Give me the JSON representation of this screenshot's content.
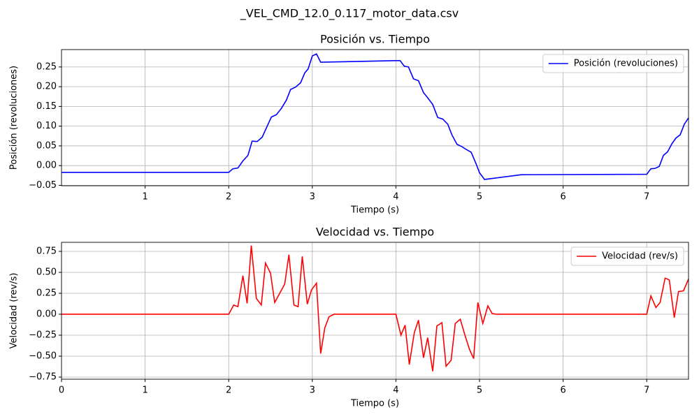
{
  "title": "_VEL_CMD_12.0_0.117_motor_data.csv",
  "chart_data": [
    {
      "type": "line",
      "title": "Posición vs. Tiempo",
      "xlabel": "Tiempo (s)",
      "ylabel": "Posición (revoluciones)",
      "x": [
        0,
        2.0,
        2.05,
        2.11,
        2.17,
        2.23,
        2.28,
        2.34,
        2.4,
        2.46,
        2.51,
        2.57,
        2.63,
        2.69,
        2.74,
        2.8,
        2.86,
        2.91,
        2.95,
        3.0,
        3.05,
        3.1,
        4.0,
        4.05,
        4.1,
        4.15,
        4.21,
        4.27,
        4.33,
        4.38,
        4.44,
        4.5,
        4.56,
        4.62,
        4.67,
        4.73,
        4.79,
        4.84,
        4.9,
        4.96,
        5.0,
        5.06,
        5.5,
        7.0,
        7.05,
        7.1,
        7.15,
        7.2,
        7.25,
        7.3,
        7.35,
        7.4,
        7.45,
        7.5
      ],
      "series": [
        {
          "name": "Posición (revoluciones)",
          "color": "#0000ff",
          "values": [
            -0.017,
            -0.017,
            -0.008,
            -0.006,
            0.012,
            0.026,
            0.062,
            0.061,
            0.072,
            0.1,
            0.123,
            0.129,
            0.145,
            0.166,
            0.193,
            0.199,
            0.21,
            0.235,
            0.245,
            0.278,
            0.283,
            0.262,
            0.266,
            0.266,
            0.252,
            0.25,
            0.22,
            0.215,
            0.185,
            0.172,
            0.155,
            0.122,
            0.118,
            0.105,
            0.078,
            0.054,
            0.048,
            0.041,
            0.034,
            0.004,
            -0.018,
            -0.035,
            -0.023,
            -0.022,
            -0.008,
            -0.007,
            -0.002,
            0.026,
            0.035,
            0.055,
            0.07,
            0.078,
            0.105,
            0.121
          ]
        }
      ],
      "xlim": [
        0,
        7.5
      ],
      "xticks": [
        1,
        2,
        3,
        4,
        5,
        6,
        7
      ],
      "ylim": [
        -0.051,
        0.294
      ],
      "yticks": [
        {
          "value": -0.05,
          "label": "−0.05"
        },
        {
          "value": 0,
          "label": "0.00"
        },
        0.05,
        {
          "value": 0.1,
          "label": "0.10"
        },
        0.15,
        {
          "value": 0.2,
          "label": "0.20"
        },
        0.25
      ],
      "grid": true,
      "legend": "upper right"
    },
    {
      "type": "line",
      "title": "Velocidad vs. Tiempo",
      "xlabel": "Tiempo (s)",
      "ylabel": "Velocidad (rev/s)",
      "x": [
        0,
        2.0,
        2.06,
        2.11,
        2.17,
        2.22,
        2.27,
        2.33,
        2.39,
        2.44,
        2.5,
        2.55,
        2.61,
        2.67,
        2.72,
        2.78,
        2.83,
        2.88,
        2.94,
        2.99,
        3.05,
        3.1,
        3.15,
        3.2,
        3.26,
        4.0,
        4.06,
        4.11,
        4.16,
        4.22,
        4.27,
        4.33,
        4.38,
        4.44,
        4.49,
        4.55,
        4.6,
        4.66,
        4.71,
        4.77,
        4.82,
        4.88,
        4.93,
        4.98,
        5.04,
        5.1,
        5.15,
        5.2,
        7.0,
        7.05,
        7.11,
        7.16,
        7.22,
        7.27,
        7.33,
        7.38,
        7.44,
        7.5
      ],
      "series": [
        {
          "name": "Velocidad (rev/s)",
          "color": "#ff0000",
          "values": [
            0,
            0,
            0.11,
            0.09,
            0.46,
            0.13,
            0.82,
            0.19,
            0.11,
            0.61,
            0.49,
            0.14,
            0.25,
            0.36,
            0.71,
            0.11,
            0.09,
            0.69,
            0.12,
            0.29,
            0.37,
            -0.47,
            -0.16,
            -0.03,
            0,
            0,
            -0.25,
            -0.13,
            -0.6,
            -0.22,
            -0.07,
            -0.52,
            -0.28,
            -0.68,
            -0.14,
            -0.1,
            -0.62,
            -0.55,
            -0.11,
            -0.06,
            -0.23,
            -0.42,
            -0.53,
            0.14,
            -0.11,
            0.1,
            0.01,
            0,
            0,
            0.22,
            0.08,
            0.14,
            0.43,
            0.41,
            -0.04,
            0.27,
            0.28,
            0.42
          ]
        }
      ],
      "xlim": [
        0,
        7.5
      ],
      "xticks": [
        0,
        1,
        2,
        3,
        4,
        5,
        6,
        7
      ],
      "ylim": [
        -0.775,
        0.858
      ],
      "yticks": [
        {
          "value": -0.75,
          "label": "−0.75"
        },
        {
          "value": -0.5,
          "label": "−0.50"
        },
        {
          "value": -0.25,
          "label": "−0.25"
        },
        {
          "value": 0,
          "label": "0.00"
        },
        0.25,
        {
          "value": 0.5,
          "label": "0.50"
        },
        0.75
      ],
      "grid": true,
      "legend": "upper right"
    }
  ]
}
